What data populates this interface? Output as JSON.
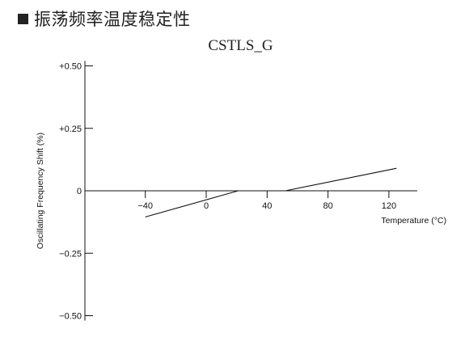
{
  "heading": {
    "text": "振荡频率温度稳定性",
    "bullet_icon": "black-square-icon"
  },
  "chart_data": {
    "type": "line",
    "title": "CSTLS_G",
    "xlabel": "Temperature (°C)",
    "ylabel": "Oscillating Frequency Shift (%)",
    "xlim": [
      -72,
      137
    ],
    "ylim": [
      -0.52,
      0.52
    ],
    "x_ticks": [
      -40,
      0,
      40,
      80,
      120
    ],
    "x_tick_labels": [
      "−40",
      "0",
      "40",
      "80",
      "120"
    ],
    "y_ticks": [
      0.5,
      0.25,
      0,
      -0.25,
      -0.5
    ],
    "y_tick_labels": [
      "+0.50",
      "+0.25",
      "0",
      "−0.25",
      "−0.50"
    ],
    "grid": false,
    "series": [
      {
        "x": [
          -40,
          21,
          52,
          125
        ],
        "y": [
          -0.105,
          0.0,
          0.0,
          0.09
        ]
      }
    ],
    "color": "#111111"
  }
}
